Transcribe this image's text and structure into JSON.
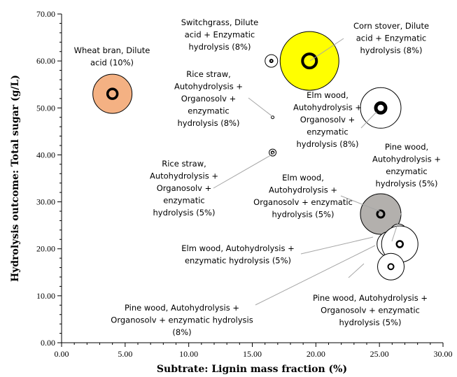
{
  "chart_data": {
    "type": "scatter",
    "xlabel": "Subtrate: Lignin mass fraction (%)",
    "ylabel": "Hydrolysis outcome: Total sugar (g/L)",
    "xlim": [
      0,
      30
    ],
    "ylim": [
      0,
      70
    ],
    "x_ticks": [
      "0.00",
      "5.00",
      "10.00",
      "15.00",
      "20.00",
      "25.00",
      "30.00"
    ],
    "y_ticks": [
      "0.00",
      "10.00",
      "20.00",
      "30.00",
      "40.00",
      "50.00",
      "60.00",
      "70.00"
    ],
    "grid": false,
    "points": [
      {
        "label": [
          "Wheat bran, Dilute",
          "acid (10%)"
        ],
        "x": 4.0,
        "y": 53.0,
        "fill": "#f4b183"
      },
      {
        "label": [
          "Switchgrass, Dilute",
          "acid + Enzymatic",
          "hydrolysis (8%)"
        ],
        "x": 16.5,
        "y": 60.0,
        "fill": "#ffffff"
      },
      {
        "label": [
          "Corn stover, Dilute",
          "acid + Enzymatic",
          "hydrolysis (8%)"
        ],
        "x": 19.5,
        "y": 60.0,
        "fill": "#ffff00"
      },
      {
        "label": [
          "Rice straw,",
          "Autohydrolysis +",
          "Organosolv +",
          "enzymatic",
          "hydrolysis (8%)"
        ],
        "x": 16.6,
        "y": 48.0,
        "fill": "#ffffff"
      },
      {
        "label": [
          "Elm wood,",
          "Autohydrolysis +",
          "Organosolv +",
          "enzymatic",
          "hydrolysis (8%)"
        ],
        "x": 25.1,
        "y": 50.0,
        "fill": "#ffffff"
      },
      {
        "label": [
          "Rice straw,",
          "Autohydrolysis +",
          "Organosolv +",
          "enzymatic",
          "hydrolysis (5%)"
        ],
        "x": 16.6,
        "y": 40.5,
        "fill": "#ffffff"
      },
      {
        "label": [
          "Elm wood,",
          "Autohydrolysis +",
          "Organosolv + enzymatic",
          "hydrolysis (5%)"
        ],
        "x": 25.1,
        "y": 27.4,
        "fill": "#b3b0ad"
      },
      {
        "label": [
          "Pine wood,",
          "Autohydrolysis +",
          "enzymatic",
          "hydrolysis (5%)"
        ],
        "x": 26.5,
        "y": 23.5,
        "fill": "#ffffff"
      },
      {
        "label": [
          "Elm wood, Autohydrolysis +",
          "enzymatic hydrolysis (5%)"
        ],
        "x": 25.8,
        "y": 21.0,
        "fill": "#ffffff"
      },
      {
        "label": [
          "Pine wood, Autohydrolysis +",
          "Organosolv + enzymatic hydrolysis",
          "(8%)"
        ],
        "x": 26.6,
        "y": 21.0,
        "fill": "#ffffff"
      },
      {
        "label": [
          "Pine wood, Autohydrolysis +",
          "Organosolv + enzymatic",
          "hydrolysis (5%)"
        ],
        "x": 25.9,
        "y": 16.2,
        "fill": "#ffffff"
      }
    ]
  }
}
